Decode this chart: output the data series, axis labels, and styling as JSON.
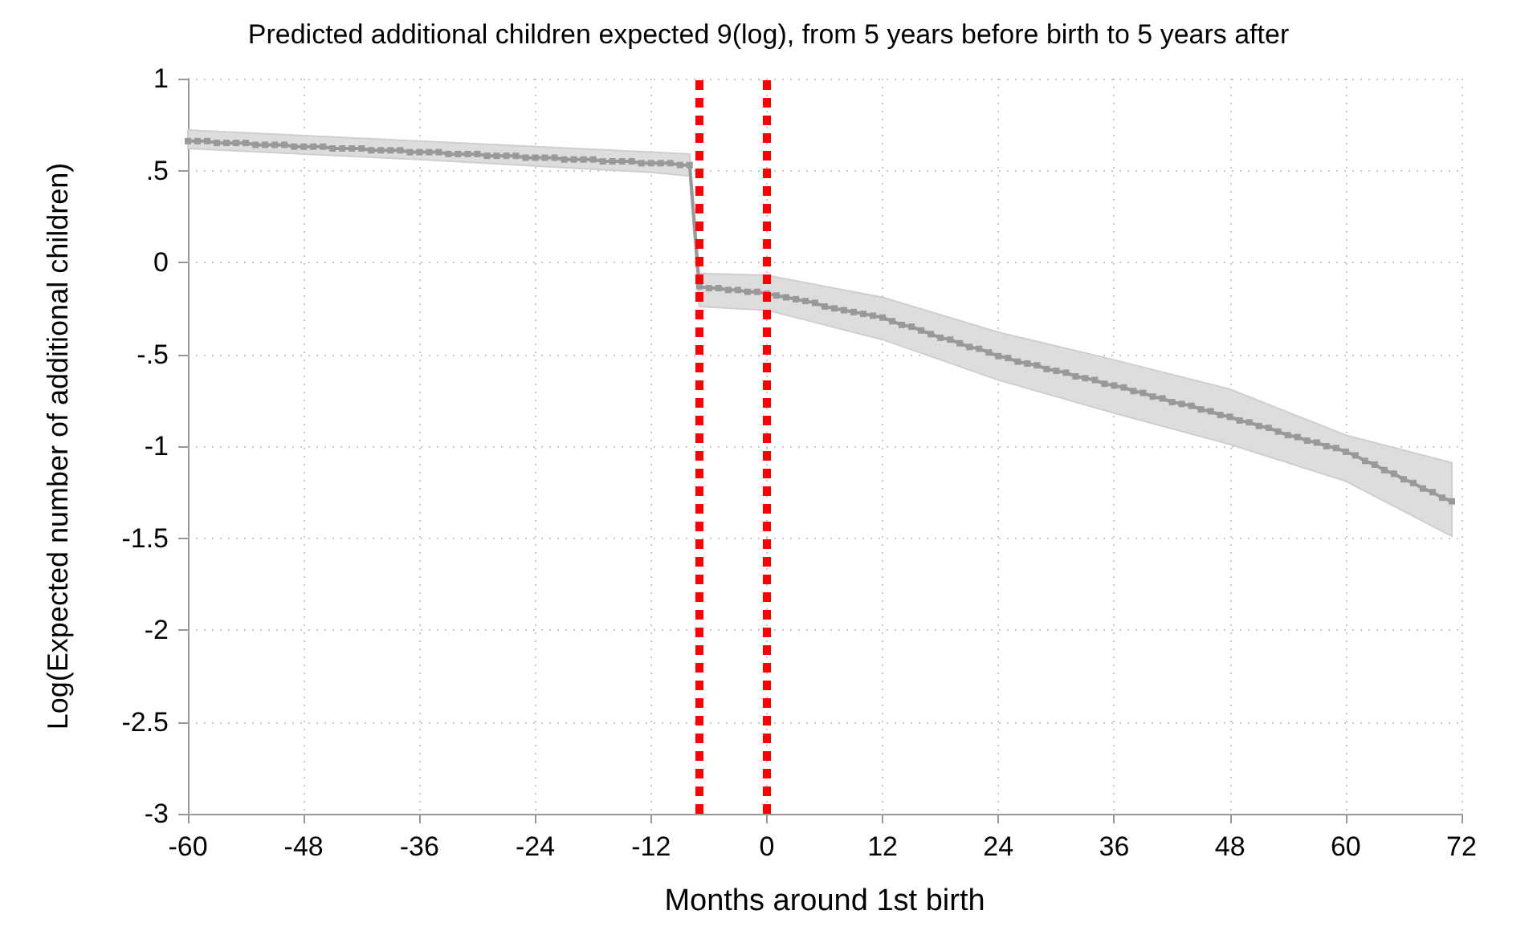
{
  "chart_data": {
    "type": "line",
    "title": "Predicted additional children expected 9(log), from 5 years before birth to 5 years after",
    "xlabel": "Months around 1st birth",
    "ylabel": "Log(Expected number of additional children)",
    "xlim": [
      -60,
      72
    ],
    "xticks": [
      -60,
      -48,
      -36,
      -24,
      -12,
      0,
      12,
      24,
      36,
      48,
      60,
      72
    ],
    "ylim": [
      -3,
      1
    ],
    "yticks": [
      {
        "value": -3,
        "label": "-3"
      },
      {
        "value": -2.5,
        "label": "-2.5"
      },
      {
        "value": -2,
        "label": "-2"
      },
      {
        "value": -1.5,
        "label": "-1.5"
      },
      {
        "value": -1,
        "label": "-1"
      },
      {
        "value": -0.5,
        "label": "-.5"
      },
      {
        "value": 0,
        "label": "0"
      },
      {
        "value": 0.5,
        "label": ".5"
      },
      {
        "value": 1,
        "label": "1"
      }
    ],
    "grid": true,
    "marker": "square",
    "line_style": "solid",
    "ref_lines": [
      {
        "axis": "x",
        "value": -7,
        "color": "#ff0000",
        "line_style": "dotted"
      },
      {
        "axis": "x",
        "value": 0,
        "color": "#ff0000",
        "line_style": "dotted"
      }
    ],
    "series": [
      {
        "color": "#999999",
        "x": [
          -60,
          -59,
          -58,
          -57,
          -56,
          -55,
          -54,
          -53,
          -52,
          -51,
          -50,
          -49,
          -48,
          -47,
          -46,
          -45,
          -44,
          -43,
          -42,
          -41,
          -40,
          -39,
          -38,
          -37,
          -36,
          -35,
          -34,
          -33,
          -32,
          -31,
          -30,
          -29,
          -28,
          -27,
          -26,
          -25,
          -24,
          -23,
          -22,
          -21,
          -20,
          -19,
          -18,
          -17,
          -16,
          -15,
          -14,
          -13,
          -12,
          -11,
          -10,
          -9,
          -8,
          -7,
          -6,
          -5,
          -4,
          -3,
          -2,
          -1,
          0,
          1,
          2,
          3,
          4,
          5,
          6,
          7,
          8,
          9,
          10,
          11,
          12,
          13,
          14,
          15,
          16,
          17,
          18,
          19,
          20,
          21,
          22,
          23,
          24,
          25,
          26,
          27,
          28,
          29,
          30,
          31,
          32,
          33,
          34,
          35,
          36,
          37,
          38,
          39,
          40,
          41,
          42,
          43,
          44,
          45,
          46,
          47,
          48,
          49,
          50,
          51,
          52,
          53,
          54,
          55,
          56,
          57,
          58,
          59,
          60,
          61,
          62,
          63,
          64,
          65,
          66,
          67,
          68,
          69,
          70,
          71
        ],
        "values": [
          0.66,
          0.66,
          0.66,
          0.65,
          0.65,
          0.65,
          0.65,
          0.64,
          0.64,
          0.64,
          0.64,
          0.63,
          0.63,
          0.63,
          0.63,
          0.62,
          0.62,
          0.62,
          0.62,
          0.61,
          0.61,
          0.61,
          0.61,
          0.6,
          0.6,
          0.6,
          0.6,
          0.59,
          0.59,
          0.59,
          0.59,
          0.58,
          0.58,
          0.58,
          0.58,
          0.57,
          0.57,
          0.57,
          0.57,
          0.56,
          0.56,
          0.56,
          0.56,
          0.55,
          0.55,
          0.55,
          0.55,
          0.54,
          0.54,
          0.54,
          0.54,
          0.53,
          0.53,
          -0.13,
          -0.14,
          -0.14,
          -0.15,
          -0.15,
          -0.16,
          -0.16,
          -0.17,
          -0.18,
          -0.19,
          -0.2,
          -0.21,
          -0.22,
          -0.24,
          -0.25,
          -0.26,
          -0.27,
          -0.28,
          -0.29,
          -0.3,
          -0.32,
          -0.34,
          -0.35,
          -0.37,
          -0.39,
          -0.41,
          -0.42,
          -0.44,
          -0.46,
          -0.47,
          -0.49,
          -0.51,
          -0.52,
          -0.54,
          -0.55,
          -0.56,
          -0.58,
          -0.59,
          -0.6,
          -0.62,
          -0.63,
          -0.64,
          -0.66,
          -0.67,
          -0.68,
          -0.7,
          -0.71,
          -0.73,
          -0.74,
          -0.76,
          -0.77,
          -0.78,
          -0.8,
          -0.81,
          -0.83,
          -0.84,
          -0.86,
          -0.87,
          -0.89,
          -0.9,
          -0.92,
          -0.94,
          -0.95,
          -0.97,
          -0.98,
          -1.0,
          -1.01,
          -1.03,
          -1.05,
          -1.08,
          -1.1,
          -1.13,
          -1.15,
          -1.18,
          -1.2,
          -1.23,
          -1.25,
          -1.28,
          -1.3
        ],
        "upper": [
          0.72,
          null,
          null,
          null,
          null,
          null,
          null,
          null,
          null,
          null,
          null,
          null,
          null,
          null,
          null,
          null,
          null,
          null,
          null,
          null,
          null,
          null,
          null,
          null,
          0.66,
          null,
          null,
          null,
          null,
          null,
          null,
          null,
          null,
          null,
          null,
          null,
          null,
          null,
          null,
          null,
          null,
          null,
          null,
          null,
          null,
          null,
          null,
          null,
          0.6,
          null,
          null,
          null,
          0.59,
          -0.06,
          null,
          null,
          null,
          null,
          null,
          null,
          -0.07,
          null,
          null,
          null,
          null,
          null,
          null,
          null,
          null,
          null,
          null,
          null,
          -0.19,
          null,
          null,
          null,
          null,
          null,
          null,
          null,
          null,
          null,
          null,
          null,
          -0.38,
          null,
          null,
          null,
          null,
          null,
          null,
          null,
          null,
          null,
          null,
          null,
          -0.53,
          null,
          null,
          null,
          null,
          null,
          null,
          null,
          null,
          null,
          null,
          null,
          -0.69,
          null,
          null,
          null,
          null,
          null,
          null,
          null,
          null,
          null,
          null,
          null,
          -0.94,
          null,
          null,
          null,
          null,
          null,
          null,
          null,
          null,
          null,
          null,
          -1.09
        ],
        "lower": [
          0.62,
          null,
          null,
          null,
          null,
          null,
          null,
          null,
          null,
          null,
          null,
          null,
          null,
          null,
          null,
          null,
          null,
          null,
          null,
          null,
          null,
          null,
          null,
          null,
          0.56,
          null,
          null,
          null,
          null,
          null,
          null,
          null,
          null,
          null,
          null,
          null,
          null,
          null,
          null,
          null,
          null,
          null,
          null,
          null,
          null,
          null,
          null,
          null,
          0.49,
          null,
          null,
          null,
          0.47,
          -0.24,
          null,
          null,
          null,
          null,
          null,
          null,
          -0.26,
          null,
          null,
          null,
          null,
          null,
          null,
          null,
          null,
          null,
          null,
          null,
          -0.42,
          null,
          null,
          null,
          null,
          null,
          null,
          null,
          null,
          null,
          null,
          null,
          -0.64,
          null,
          null,
          null,
          null,
          null,
          null,
          null,
          null,
          null,
          null,
          null,
          -0.82,
          null,
          null,
          null,
          null,
          null,
          null,
          null,
          null,
          null,
          null,
          null,
          -0.99,
          null,
          null,
          null,
          null,
          null,
          null,
          null,
          null,
          null,
          null,
          null,
          -1.19,
          null,
          null,
          null,
          null,
          null,
          null,
          null,
          null,
          null,
          null,
          -1.49
        ]
      }
    ]
  }
}
